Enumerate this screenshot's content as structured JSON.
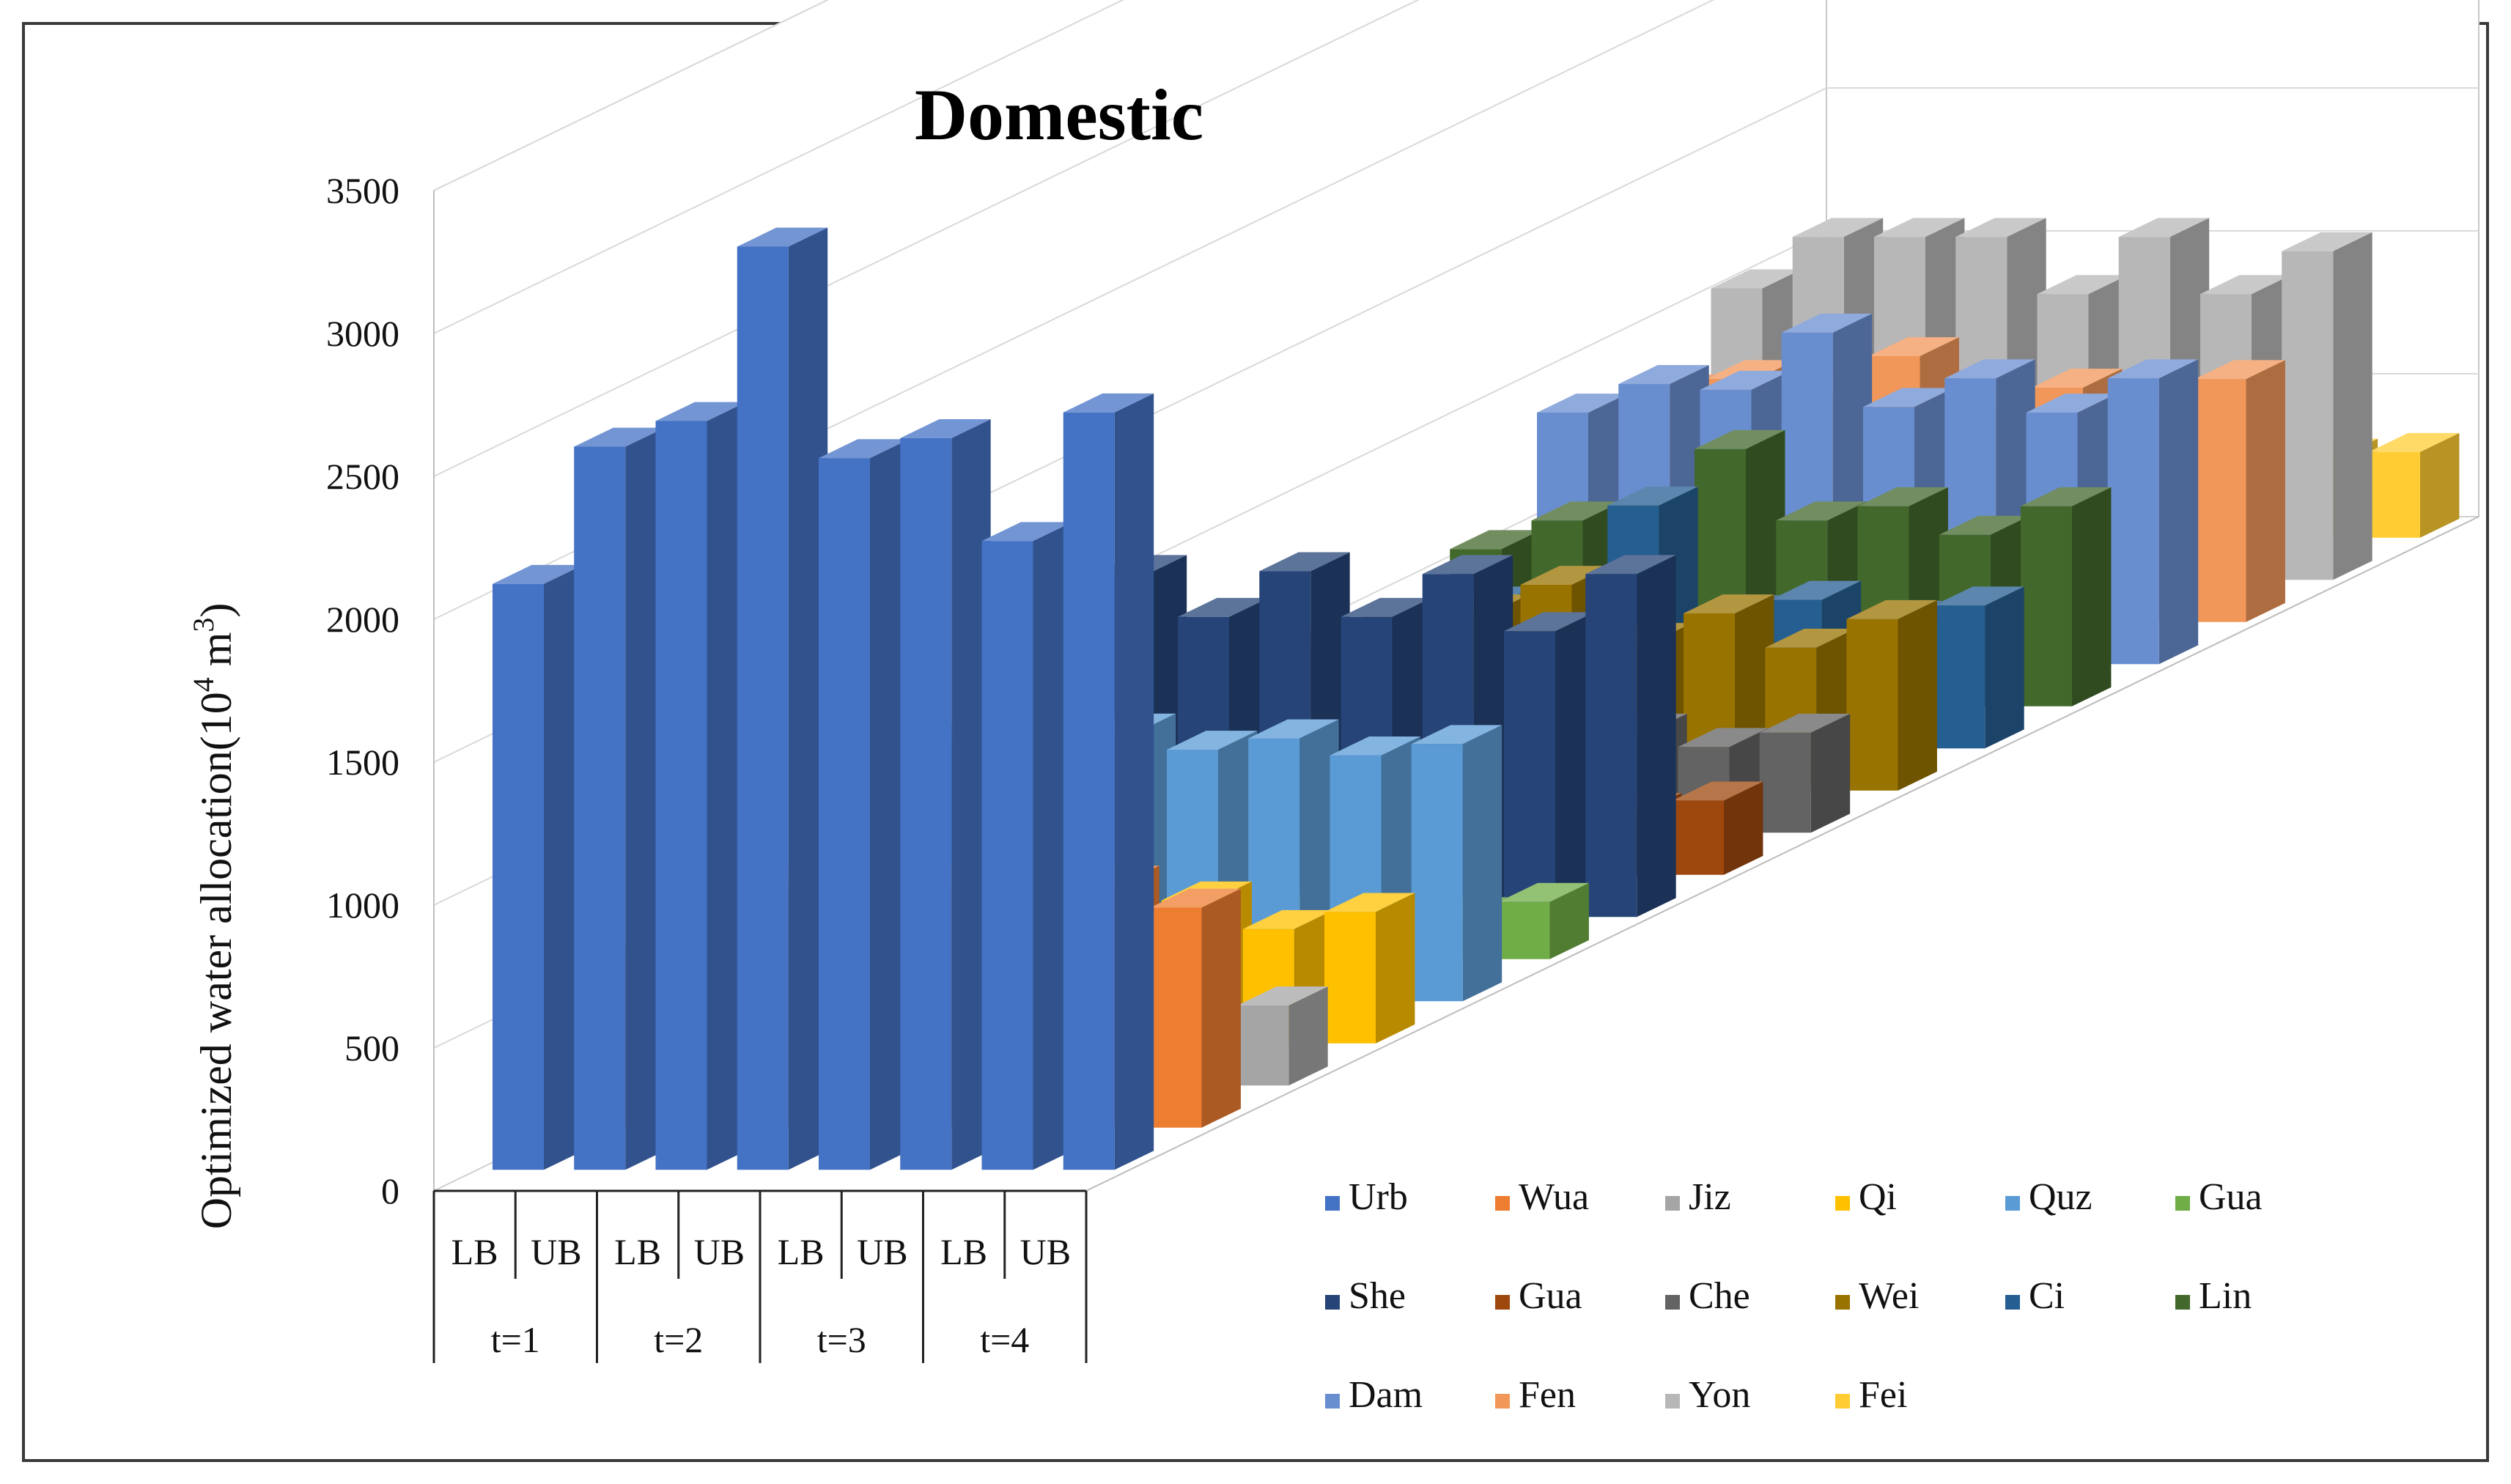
{
  "chart_data": {
    "type": "bar",
    "subtype": "3d-clustered-column",
    "title": "Domestic",
    "ylabel": "Optimized water allocation(10",
    "ylabel_sup": "4",
    "ylabel_tail": " m",
    "ylabel_sup2": "3",
    "ylabel_end": ")",
    "ylim": [
      0,
      3500
    ],
    "yticks": [
      "0",
      "500",
      "1000",
      "1500",
      "2000",
      "2500",
      "3000",
      "3500"
    ],
    "categories": [
      "LB",
      "UB",
      "LB",
      "UB",
      "LB",
      "UB",
      "LB",
      "UB"
    ],
    "groups": [
      "t=1",
      "t=2",
      "t=3",
      "t=4"
    ],
    "legend_position": "bottom-right",
    "gridlines": true,
    "series": [
      {
        "name": "Urb",
        "color": "#4472C4",
        "values": [
          2050,
          2530,
          2620,
          3230,
          2490,
          2560,
          2200,
          2650
        ]
      },
      {
        "name": "Wua",
        "color": "#ED7D31",
        "values": [
          570,
          800,
          850,
          850,
          850,
          800,
          850,
          770
        ]
      },
      {
        "name": "Jiz",
        "color": "#A5A5A5",
        "values": [
          210,
          280,
          210,
          280,
          210,
          280,
          210,
          280
        ]
      },
      {
        "name": "Qi",
        "color": "#FFC000",
        "values": [
          400,
          500,
          400,
          520,
          400,
          500,
          400,
          460
        ]
      },
      {
        "name": "Quz",
        "color": "#5B9BD5",
        "values": [
          850,
          920,
          880,
          940,
          880,
          920,
          860,
          900
        ]
      },
      {
        "name": "Gua",
        "color": "#70AD47",
        "values": [
          150,
          210,
          160,
          220,
          160,
          210,
          150,
          200
        ]
      },
      {
        "name": "She",
        "color": "#264478",
        "values": [
          1000,
          1200,
          1050,
          1210,
          1050,
          1200,
          1000,
          1200
        ]
      },
      {
        "name": "Gua",
        "color": "#9E480E",
        "values": [
          220,
          260,
          230,
          270,
          230,
          260,
          220,
          260
        ]
      },
      {
        "name": "Che",
        "color": "#636363",
        "values": [
          300,
          350,
          310,
          360,
          310,
          350,
          300,
          350
        ]
      },
      {
        "name": "Wei",
        "color": "#997300",
        "values": [
          500,
          600,
          620,
          720,
          520,
          620,
          500,
          600
        ]
      },
      {
        "name": "Ci",
        "color": "#255E91",
        "values": [
          450,
          500,
          470,
          850,
          470,
          520,
          450,
          500
        ]
      },
      {
        "name": "Lin",
        "color": "#43682B",
        "values": [
          550,
          650,
          700,
          900,
          650,
          700,
          600,
          700
        ]
      },
      {
        "name": "Dam",
        "color": "#698ED0",
        "values": [
          880,
          980,
          960,
          1160,
          900,
          1000,
          880,
          1000
        ]
      },
      {
        "name": "Fen",
        "color": "#F1975A",
        "values": [
          800,
          850,
          800,
          930,
          750,
          820,
          750,
          850
        ]
      },
      {
        "name": "Yon",
        "color": "#B7B7B7",
        "values": [
          1020,
          1200,
          1200,
          1200,
          1000,
          1200,
          1000,
          1150
        ]
      },
      {
        "name": "Fei",
        "color": "#FFCD33",
        "values": [
          280,
          300,
          300,
          300,
          280,
          300,
          280,
          300
        ]
      }
    ]
  }
}
